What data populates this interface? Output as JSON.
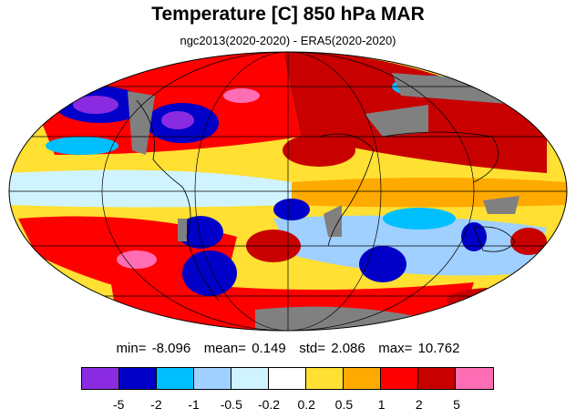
{
  "title": "Temperature [C] 850 hPa MAR",
  "subtitle": "ngc2013(2020-2020) - ERA5(2020-2020)",
  "stats": {
    "min_label": "min=",
    "min": "-8.096",
    "mean_label": "mean=",
    "mean": "0.149",
    "std_label": "std=",
    "std": "2.086",
    "max_label": "max=",
    "max": "10.762"
  },
  "colorbar": {
    "colors": [
      "#8a2be2",
      "#0000c8",
      "#00bfff",
      "#9fd0ff",
      "#d0f4ff",
      "#ffffff",
      "#ffe033",
      "#ffaa00",
      "#ff0000",
      "#c80000",
      "#ff6eb4"
    ],
    "labels": [
      "-5",
      "-2",
      "-1",
      "-0.5",
      "-0.2",
      "0.2",
      "0.5",
      "1",
      "2",
      "5"
    ]
  },
  "map": {
    "projection": "mollweide",
    "missing_color": "#808080",
    "coastline_color": "#000000"
  }
}
